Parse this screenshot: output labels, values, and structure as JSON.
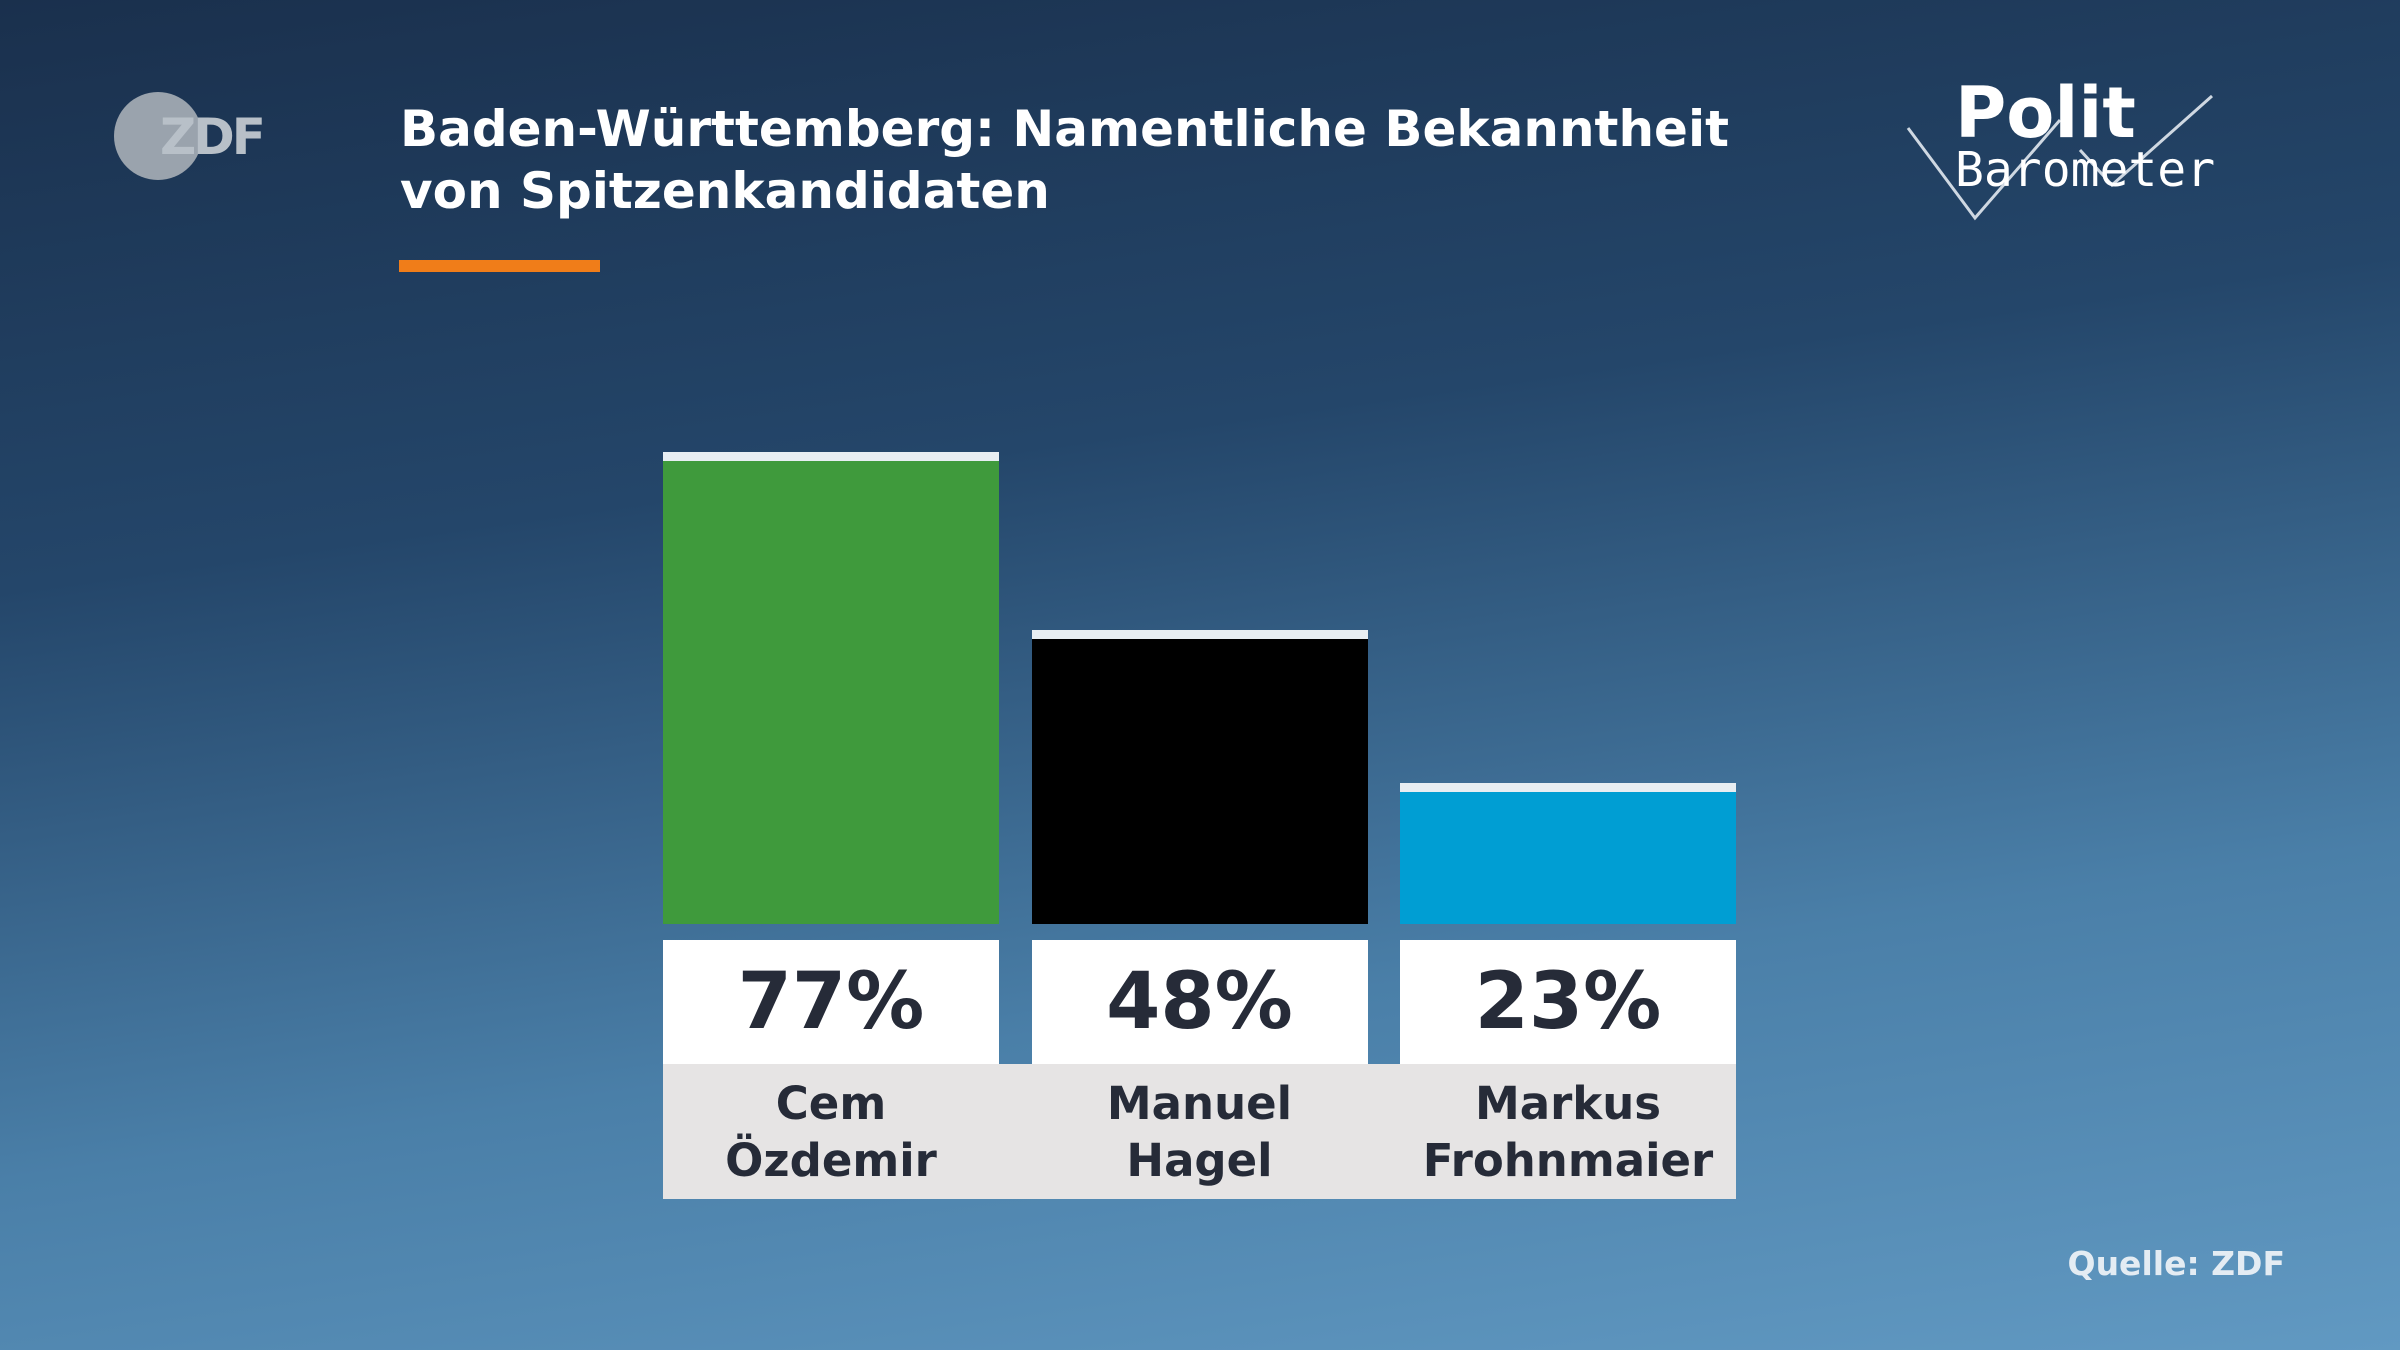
{
  "header": {
    "logo": "ZDF",
    "brand_top": "Polit",
    "brand_bottom": "Barometer"
  },
  "chart_data": {
    "type": "bar",
    "title": "Baden-Württemberg: Namentliche Bekanntheit von Spitzenkandidaten",
    "categories": [
      "Cem Özdemir",
      "Manuel Hagel",
      "Markus Frohnmaier"
    ],
    "values": [
      77,
      48,
      23
    ],
    "value_labels": [
      "77%",
      "48%",
      "23%"
    ],
    "colors": [
      "#3f9a3c",
      "#000000",
      "#009ed3"
    ]
  },
  "footer": {
    "source": "Quelle: ZDF"
  }
}
